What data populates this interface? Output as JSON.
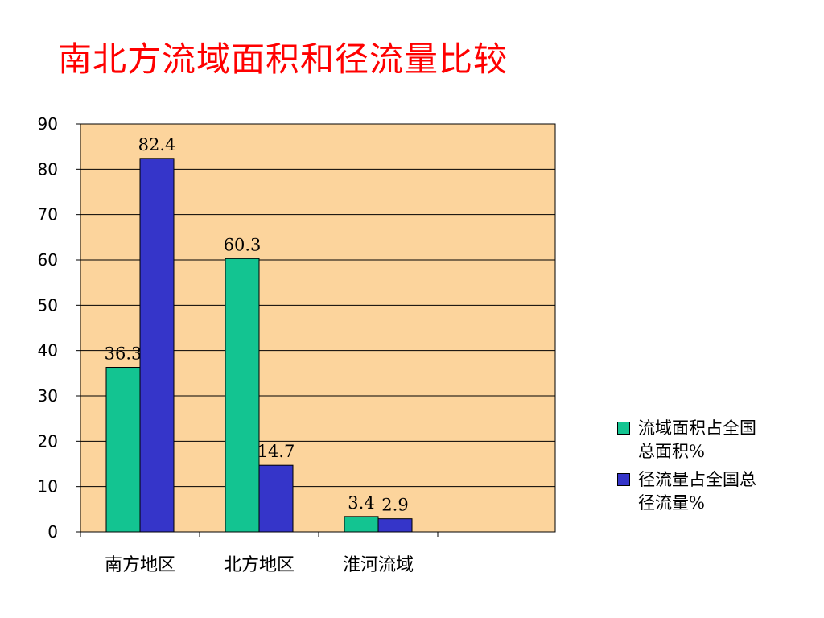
{
  "title": "南北方流域面积和径流量比较",
  "colors": {
    "plot_background": "#fcd49c",
    "series_area": "#13c491",
    "series_runoff": "#3535c9",
    "title": "#ff0000"
  },
  "chart_data": {
    "type": "bar",
    "title": "南北方流域面积和径流量比较",
    "categories": [
      "南方地区",
      "北方地区",
      "淮河流域"
    ],
    "series": [
      {
        "name": "流域面积占全国总面积%",
        "values": [
          36.3,
          60.3,
          3.4
        ],
        "labels": [
          "36.3",
          "60.3",
          "3.4"
        ]
      },
      {
        "name": "径流量占全国总径流量%",
        "values": [
          82.4,
          14.7,
          2.9
        ],
        "labels": [
          "82.4",
          "14.7",
          "2.9"
        ]
      }
    ],
    "ylim": [
      0,
      90
    ],
    "yticks": [
      "0",
      "10",
      "20",
      "30",
      "40",
      "50",
      "60",
      "70",
      "80",
      "90"
    ],
    "grid": true,
    "legend_position": "right"
  },
  "legend": {
    "items": [
      {
        "line1": "流域面积占全国",
        "line2": "总面积%"
      },
      {
        "line1": "径流量占全国总",
        "line2": "径流量%"
      }
    ]
  }
}
